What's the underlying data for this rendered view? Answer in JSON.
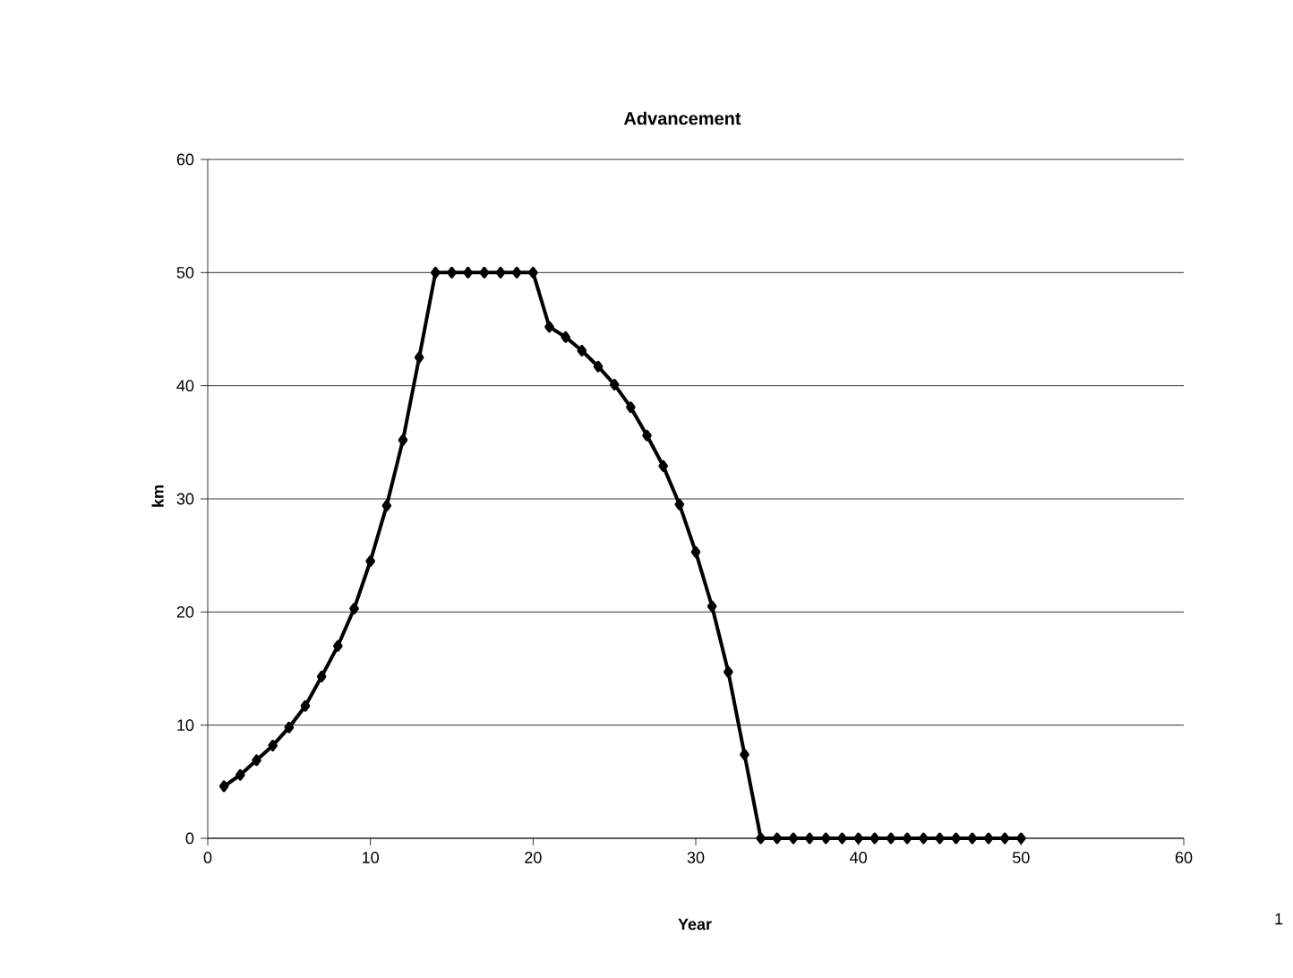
{
  "chart_data": {
    "type": "line",
    "title": "Advancement",
    "xlabel": "Year",
    "ylabel": "km",
    "x": [
      1,
      2,
      3,
      4,
      5,
      6,
      7,
      8,
      9,
      10,
      11,
      12,
      13,
      14,
      15,
      16,
      17,
      18,
      19,
      20,
      21,
      22,
      23,
      24,
      25,
      26,
      27,
      28,
      29,
      30,
      31,
      32,
      33,
      34,
      35,
      36,
      37,
      38,
      39,
      40,
      41,
      42,
      43,
      44,
      45,
      46,
      47,
      48,
      49,
      50
    ],
    "series": [
      {
        "color": "#000000",
        "values": [
          4.6,
          5.6,
          6.9,
          8.2,
          9.8,
          11.7,
          14.3,
          17.0,
          20.3,
          24.5,
          29.4,
          35.2,
          42.5,
          50,
          50,
          50,
          50,
          50,
          50,
          50,
          45.2,
          44.3,
          43.1,
          41.7,
          40.1,
          38.1,
          35.6,
          32.9,
          29.5,
          25.3,
          20.5,
          14.7,
          7.4,
          0,
          0,
          0,
          0,
          0,
          0,
          0,
          0,
          0,
          0,
          0,
          0,
          0,
          0,
          0,
          0,
          0
        ]
      }
    ],
    "xlim": [
      0,
      60
    ],
    "ylim": [
      0,
      60
    ],
    "xticks": [
      0,
      10,
      20,
      30,
      40,
      50,
      60
    ],
    "yticks": [
      0,
      10,
      20,
      30,
      40,
      50,
      60
    ],
    "grid": "y",
    "marker": "diamond",
    "line_style": "solid",
    "annotations": [
      "1"
    ]
  }
}
